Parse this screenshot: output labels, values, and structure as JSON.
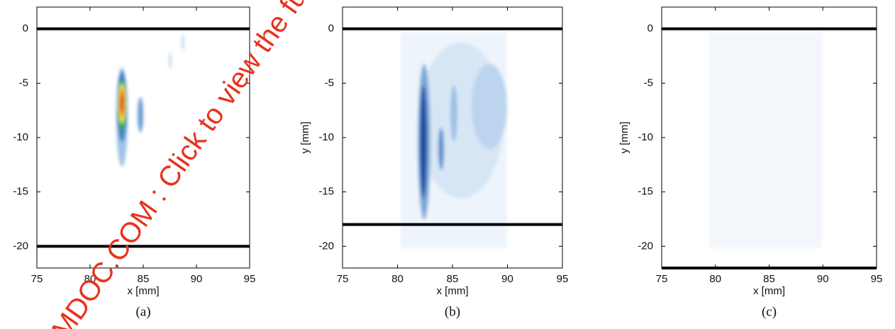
{
  "chart_data": [
    {
      "type": "heatmap",
      "xlabel": "x [mm]",
      "caption": "(a)",
      "xlim": [
        75,
        95
      ],
      "ylim": [
        -22,
        2
      ],
      "xticks": [
        75,
        80,
        85,
        90,
        95
      ],
      "yticks": [
        0,
        -5,
        -10,
        -15,
        -20
      ],
      "hlines": [
        0,
        -20
      ]
    },
    {
      "type": "heatmap",
      "xlabel": "x [mm]",
      "ylabel": "y [mm]",
      "caption": "(b)",
      "xlim": [
        75,
        95
      ],
      "ylim": [
        -22,
        2
      ],
      "xticks": [
        75,
        80,
        85,
        90,
        95
      ],
      "yticks": [
        0,
        -5,
        -10,
        -15,
        -20
      ],
      "hlines": [
        0,
        -18
      ]
    },
    {
      "type": "heatmap",
      "xlabel": "x [mm]",
      "ylabel": "y [mm]",
      "caption": "(c)",
      "xlim": [
        75,
        95
      ],
      "ylim": [
        -22,
        2
      ],
      "xticks": [
        75,
        80,
        85,
        90,
        95
      ],
      "yticks": [
        0,
        -5,
        -10,
        -15,
        -20
      ],
      "hlines": [
        0,
        -22
      ]
    }
  ],
  "watermark": "MDOC.COM : Click to view the fu"
}
